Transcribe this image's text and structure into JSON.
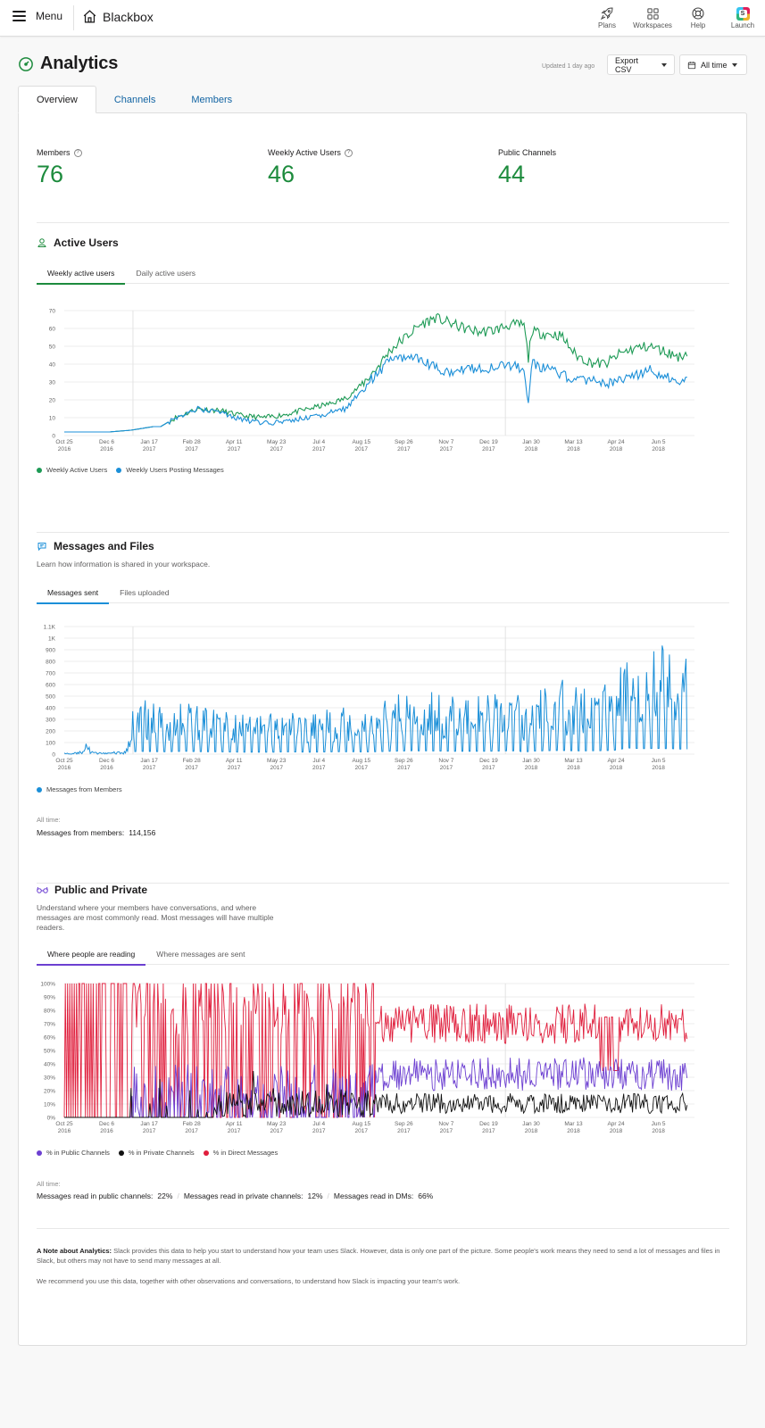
{
  "topbar": {
    "menu_label": "Menu",
    "workspace_name": "Blackbox",
    "actions": [
      {
        "label": "Plans",
        "icon": "rocket-icon"
      },
      {
        "label": "Workspaces",
        "icon": "grid-icon"
      },
      {
        "label": "Help",
        "icon": "lifebuoy-icon"
      },
      {
        "label": "Launch",
        "icon": "slack-logo-icon"
      }
    ]
  },
  "header": {
    "title": "Analytics",
    "updated": "Updated 1 day ago",
    "export_label": "Export CSV",
    "range_label": "All time"
  },
  "tabs": [
    "Overview",
    "Channels",
    "Members"
  ],
  "stats": [
    {
      "label": "Members",
      "value": "76"
    },
    {
      "label": "Weekly Active Users",
      "value": "46"
    },
    {
      "label": "Public Channels",
      "value": "44"
    }
  ],
  "colors": {
    "accent_green": "#1d8b3d",
    "blue": "#1b8fd8",
    "purple": "#6c3fd1",
    "red": "#e01e3c",
    "black": "#111111"
  },
  "active_users": {
    "title": "Active Users",
    "tabs": [
      "Weekly active users",
      "Daily active users"
    ],
    "legend": [
      "Weekly Active Users",
      "Weekly Users Posting Messages"
    ]
  },
  "messages": {
    "title": "Messages and Files",
    "desc": "Learn how information is shared in your workspace.",
    "tabs": [
      "Messages sent",
      "Files uploaded"
    ],
    "legend": [
      "Messages from Members"
    ],
    "alltime_label": "All time:",
    "alltime_text": "Messages from members:",
    "alltime_value": "114,156"
  },
  "public_private": {
    "title": "Public and Private",
    "desc": "Understand where your members have conversations, and where messages are most commonly read. Most messages will have multiple readers.",
    "tabs": [
      "Where people are reading",
      "Where messages are sent"
    ],
    "legend": [
      "% in Public Channels",
      "% in Private Channels",
      "% in Direct Messages"
    ],
    "alltime_label": "All time:",
    "stats": [
      {
        "label": "Messages read in public channels:",
        "value": "22%"
      },
      {
        "label": "Messages read in private channels:",
        "value": "12%"
      },
      {
        "label": "Messages read in DMs:",
        "value": "66%"
      }
    ]
  },
  "note": {
    "bold": "A Note about Analytics:",
    "text": "Slack provides this data to help you start to understand how your team uses Slack. However, data is only one part of the picture. Some people's work means they need to send a lot of messages and files in Slack, but others may not have to send many messages at all.",
    "text2": "We recommend you use this data, together with other observations and conversations, to understand how Slack is impacting your team's work."
  },
  "chart_data": [
    {
      "type": "line",
      "title": "",
      "x_ticks": [
        "Oct 25 2016",
        "Dec 6 2016",
        "Jan 17 2017",
        "Feb 28 2017",
        "Apr 11 2017",
        "May 23 2017",
        "Jul 4 2017",
        "Aug 15 2017",
        "Sep 26 2017",
        "Nov 7 2017",
        "Dec 19 2017",
        "Jan 30 2018",
        "Mar 13 2018",
        "Apr 24 2018",
        "Jun 5 2018"
      ],
      "ylim": [
        0,
        70
      ],
      "y_ticks": [
        "0",
        "10",
        "20",
        "30",
        "40",
        "50",
        "60",
        "70"
      ],
      "series": [
        {
          "name": "Weekly Active Users",
          "color": "#1d9a55",
          "anchors": [
            [
              0,
              2
            ],
            [
              6,
              2
            ],
            [
              9,
              3
            ],
            [
              12,
              5
            ],
            [
              13,
              5
            ],
            [
              15,
              10
            ],
            [
              18,
              15
            ],
            [
              21,
              14
            ],
            [
              24,
              11
            ],
            [
              27,
              10
            ],
            [
              30,
              12
            ],
            [
              33,
              15
            ],
            [
              36,
              18
            ],
            [
              38,
              21
            ],
            [
              40,
              28
            ],
            [
              42,
              37
            ],
            [
              44,
              48
            ],
            [
              46,
              55
            ],
            [
              48,
              62
            ],
            [
              50,
              66
            ],
            [
              52,
              63
            ],
            [
              54,
              60
            ],
            [
              56,
              58
            ],
            [
              58,
              59
            ],
            [
              60,
              62
            ],
            [
              62,
              62
            ],
            [
              62.6,
              43
            ],
            [
              63,
              58
            ],
            [
              65,
              57
            ],
            [
              67,
              56
            ],
            [
              69,
              45
            ],
            [
              71,
              41
            ],
            [
              73,
              40
            ],
            [
              75,
              46
            ],
            [
              77,
              49
            ],
            [
              79,
              50
            ],
            [
              81,
              47
            ],
            [
              83,
              44
            ],
            [
              84,
              47
            ]
          ]
        },
        {
          "name": "Weekly Users Posting Messages",
          "color": "#1b8fd8",
          "anchors": [
            [
              0,
              2
            ],
            [
              6,
              2
            ],
            [
              9,
              3
            ],
            [
              12,
              5
            ],
            [
              13,
              5
            ],
            [
              15,
              10
            ],
            [
              18,
              15
            ],
            [
              21,
              13
            ],
            [
              24,
              9
            ],
            [
              27,
              7
            ],
            [
              30,
              8
            ],
            [
              33,
              10
            ],
            [
              36,
              13
            ],
            [
              38,
              15
            ],
            [
              40,
              25
            ],
            [
              42,
              34
            ],
            [
              44,
              42
            ],
            [
              46,
              44
            ],
            [
              48,
              42
            ],
            [
              50,
              38
            ],
            [
              52,
              36
            ],
            [
              54,
              37
            ],
            [
              56,
              38
            ],
            [
              58,
              38
            ],
            [
              60,
              39
            ],
            [
              62,
              38
            ],
            [
              62.6,
              18
            ],
            [
              63,
              40
            ],
            [
              65,
              38
            ],
            [
              67,
              34
            ],
            [
              69,
              30
            ],
            [
              71,
              31
            ],
            [
              73,
              29
            ],
            [
              75,
              31
            ],
            [
              77,
              34
            ],
            [
              79,
              37
            ],
            [
              81,
              33
            ],
            [
              83,
              31
            ],
            [
              84,
              33
            ]
          ]
        }
      ]
    },
    {
      "type": "bar",
      "title": "",
      "x_ticks": [
        "Oct 25 2016",
        "Dec 6 2016",
        "Jan 17 2017",
        "Feb 28 2017",
        "Apr 11 2017",
        "May 23 2017",
        "Jul 4 2017",
        "Aug 15 2017",
        "Sep 26 2017",
        "Nov 7 2017",
        "Dec 19 2017",
        "Jan 30 2018",
        "Mar 13 2018",
        "Apr 24 2018",
        "Jun 5 2018"
      ],
      "ylim": [
        0,
        1100
      ],
      "y_ticks": [
        "0",
        "100",
        "200",
        "300",
        "400",
        "500",
        "600",
        "700",
        "800",
        "900",
        "1K",
        "1.1K"
      ],
      "series": [
        {
          "name": "Messages from Members",
          "color": "#1b8fd8",
          "envelope": [
            [
              0,
              30
            ],
            [
              2,
              40
            ],
            [
              3,
              250
            ],
            [
              4,
              40
            ],
            [
              8,
              60
            ],
            [
              9,
              400
            ],
            [
              10,
              500
            ],
            [
              12,
              450
            ],
            [
              14,
              420
            ],
            [
              16,
              500
            ],
            [
              18,
              450
            ],
            [
              21,
              400
            ],
            [
              24,
              350
            ],
            [
              27,
              330
            ],
            [
              30,
              400
            ],
            [
              33,
              350
            ],
            [
              36,
              400
            ],
            [
              38,
              420
            ],
            [
              41,
              400
            ],
            [
              44,
              500
            ],
            [
              47,
              600
            ],
            [
              50,
              550
            ],
            [
              53,
              500
            ],
            [
              56,
              500
            ],
            [
              59,
              550
            ],
            [
              61,
              600
            ],
            [
              62,
              350
            ],
            [
              63,
              520
            ],
            [
              65,
              600
            ],
            [
              67,
              650
            ],
            [
              69,
              580
            ],
            [
              72,
              600
            ],
            [
              74,
              650
            ],
            [
              76,
              1080
            ],
            [
              78,
              950
            ],
            [
              80,
              1000
            ],
            [
              82,
              950
            ],
            [
              84,
              850
            ]
          ]
        }
      ]
    },
    {
      "type": "line",
      "title": "",
      "x_ticks": [
        "Oct 25 2016",
        "Dec 6 2016",
        "Jan 17 2017",
        "Feb 28 2017",
        "Apr 11 2017",
        "May 23 2017",
        "Jul 4 2017",
        "Aug 15 2017",
        "Sep 26 2017",
        "Nov 7 2017",
        "Dec 19 2017",
        "Jan 30 2018",
        "Mar 13 2018",
        "Apr 24 2018",
        "Jun 5 2018"
      ],
      "ylim": [
        0,
        100
      ],
      "y_ticks": [
        "0%",
        "10%",
        "20%",
        "30%",
        "40%",
        "50%",
        "60%",
        "70%",
        "80%",
        "90%",
        "100%"
      ],
      "series": [
        {
          "name": "% in Public Channels",
          "color": "#6c3fd1"
        },
        {
          "name": "% in Private Channels",
          "color": "#111111"
        },
        {
          "name": "% in Direct Messages",
          "color": "#e01e3c"
        }
      ]
    }
  ]
}
